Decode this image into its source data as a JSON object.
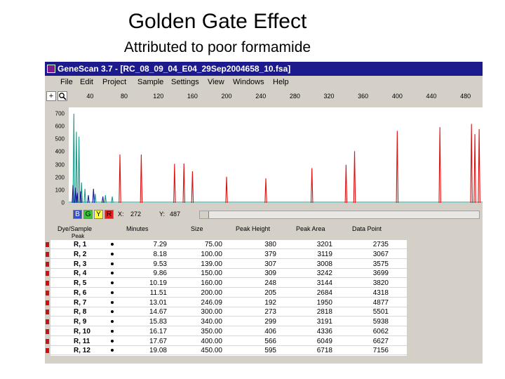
{
  "slide": {
    "title": "Golden Gate Effect",
    "subtitle": "Attributed to poor formamide"
  },
  "window": {
    "title": "GeneScan 3.7 - [RC_08_09_04_E04_29Sep2004658_10.fsa]",
    "menu": [
      "File",
      "Edit",
      "Project",
      "Sample",
      "Settings",
      "View",
      "Windows",
      "Help"
    ]
  },
  "toolbar": {
    "add_icon": "+",
    "zoom_icon": "magnifier"
  },
  "status": {
    "channels": [
      "B",
      "G",
      "Y",
      "R"
    ],
    "x_label": "X:",
    "x_value": "272",
    "y_label": "Y:",
    "y_value": "487"
  },
  "table": {
    "headers": {
      "dye_sample": "Dye/Sample",
      "peak": "Peak",
      "minutes": "Minutes",
      "size": "Size",
      "peak_height": "Peak Height",
      "peak_area": "Peak Area",
      "data_point": "Data Point"
    },
    "rows": [
      {
        "dye": "R, 1",
        "minutes": "7.29",
        "size": "75.00",
        "height": "380",
        "area": "3201",
        "point": "2735"
      },
      {
        "dye": "R, 2",
        "minutes": "8.18",
        "size": "100.00",
        "height": "379",
        "area": "3119",
        "point": "3067"
      },
      {
        "dye": "R, 3",
        "minutes": "9.53",
        "size": "139.00",
        "height": "307",
        "area": "3008",
        "point": "3575"
      },
      {
        "dye": "R, 4",
        "minutes": "9.86",
        "size": "150.00",
        "height": "309",
        "area": "3242",
        "point": "3699"
      },
      {
        "dye": "R, 5",
        "minutes": "10.19",
        "size": "160.00",
        "height": "248",
        "area": "3144",
        "point": "3820"
      },
      {
        "dye": "R, 6",
        "minutes": "11.51",
        "size": "200.00",
        "height": "205",
        "area": "2684",
        "point": "4318"
      },
      {
        "dye": "R, 7",
        "minutes": "13.01",
        "size": "246.09",
        "height": "192",
        "area": "1950",
        "point": "4877"
      },
      {
        "dye": "R, 8",
        "minutes": "14.67",
        "size": "300.00",
        "height": "273",
        "area": "2818",
        "point": "5501"
      },
      {
        "dye": "R, 9",
        "minutes": "15.83",
        "size": "340.00",
        "height": "299",
        "area": "3191",
        "point": "5938"
      },
      {
        "dye": "R, 10",
        "minutes": "16.17",
        "size": "350.00",
        "height": "406",
        "area": "4336",
        "point": "6062"
      },
      {
        "dye": "R, 11",
        "minutes": "17.67",
        "size": "400.00",
        "height": "566",
        "area": "6049",
        "point": "6627"
      },
      {
        "dye": "R, 12",
        "minutes": "19.08",
        "size": "450.00",
        "height": "595",
        "area": "6718",
        "point": "7156"
      }
    ]
  },
  "chart_data": {
    "type": "line",
    "title": "",
    "x_axis": {
      "range": [
        15,
        500
      ],
      "ticks": [
        "40",
        "80",
        "120",
        "160",
        "200",
        "240",
        "280",
        "320",
        "360",
        "400",
        "440",
        "480"
      ]
    },
    "y_axis": {
      "range": [
        0,
        750
      ],
      "ticks": [
        "0",
        "100",
        "200",
        "300",
        "400",
        "500",
        "600",
        "700"
      ]
    },
    "series": [
      {
        "name": "R",
        "color": "#dd1111",
        "peaks": [
          {
            "x": 75,
            "h": 380
          },
          {
            "x": 100,
            "h": 379
          },
          {
            "x": 139,
            "h": 307
          },
          {
            "x": 150,
            "h": 309
          },
          {
            "x": 160,
            "h": 248
          },
          {
            "x": 200,
            "h": 205
          },
          {
            "x": 246,
            "h": 192
          },
          {
            "x": 300,
            "h": 273
          },
          {
            "x": 340,
            "h": 299
          },
          {
            "x": 350,
            "h": 406
          },
          {
            "x": 400,
            "h": 566
          },
          {
            "x": 450,
            "h": 595
          },
          {
            "x": 487,
            "h": 620
          },
          {
            "x": 491,
            "h": 540
          },
          {
            "x": 496,
            "h": 580
          }
        ]
      },
      {
        "name": "G",
        "color": "#1a9a8a",
        "peaks": [
          {
            "x": 21,
            "h": 700
          },
          {
            "x": 24,
            "h": 560
          },
          {
            "x": 27,
            "h": 520
          },
          {
            "x": 30,
            "h": 160
          },
          {
            "x": 34,
            "h": 110
          },
          {
            "x": 46,
            "h": 70
          },
          {
            "x": 58,
            "h": 60
          },
          {
            "x": 66,
            "h": 50
          }
        ]
      },
      {
        "name": "B",
        "color": "#1a1a99",
        "peaks": [
          {
            "x": 20,
            "h": 140
          },
          {
            "x": 23,
            "h": 120
          },
          {
            "x": 25,
            "h": 80
          },
          {
            "x": 29,
            "h": 90
          },
          {
            "x": 38,
            "h": 60
          },
          {
            "x": 44,
            "h": 110
          },
          {
            "x": 55,
            "h": 50
          }
        ]
      }
    ]
  }
}
